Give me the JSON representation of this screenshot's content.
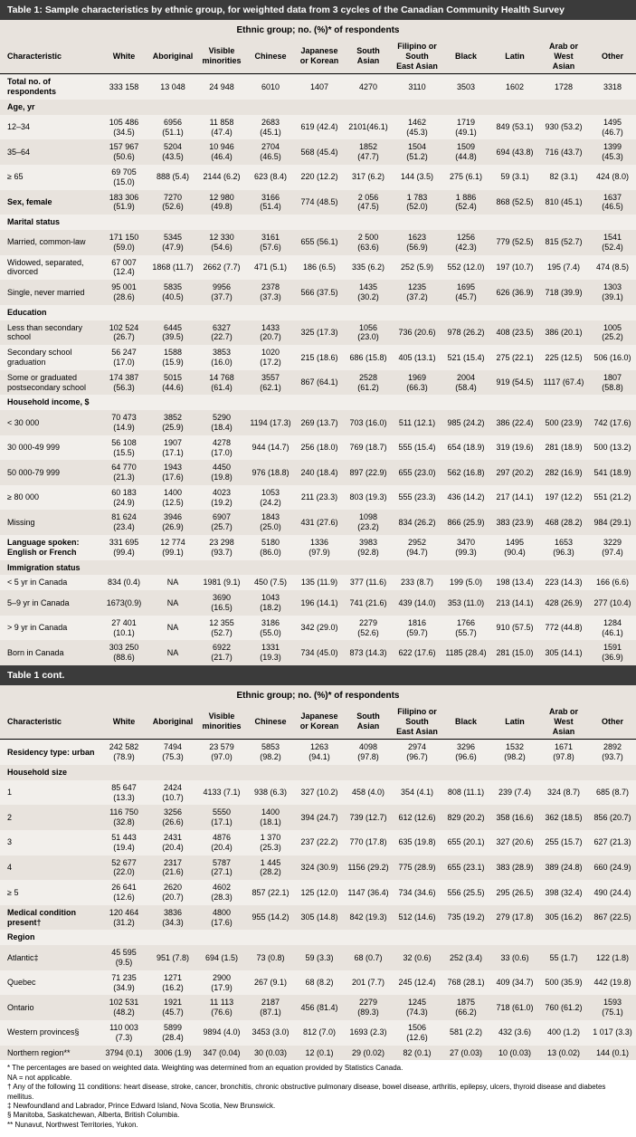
{
  "title1": "Table 1: Sample characteristics by ethnic group, for weighted data from 3 cycles of the Canadian Community Health Survey",
  "title2": "Table 1 cont.",
  "group_header": "Ethnic group; no. (%)* of respondents",
  "cols": [
    "Characteristic",
    "White",
    "Aboriginal",
    "Visible minorities",
    "Chinese",
    "Japanese or Korean",
    "South Asian",
    "Filipino or South East Asian",
    "Black",
    "Latin",
    "Arab or West Asian",
    "Other"
  ],
  "part1": [
    {
      "s": "Total no. of respondents",
      "r": [
        [
          "",
          "333 158",
          "13 048",
          "24 948",
          "6010",
          "1407",
          "4270",
          "3110",
          "3503",
          "1602",
          "1728",
          "3318"
        ]
      ]
    },
    {
      "s": "Age, yr",
      "r": [
        [
          "12–34",
          "105 486 (34.5)",
          "6956 (51.1)",
          "11 858 (47.4)",
          "2683 (45.1)",
          "619 (42.4)",
          "2101(46.1)",
          "1462 (45.3)",
          "1719 (49.1)",
          "849 (53.1)",
          "930 (53.2)",
          "1495 (46.7)"
        ],
        [
          "35–64",
          "157 967 (50.6)",
          "5204 (43.5)",
          "10 946 (46.4)",
          "2704 (46.5)",
          "568 (45.4)",
          "1852 (47.7)",
          "1504 (51.2)",
          "1509 (44.8)",
          "694 (43.8)",
          "716 (43.7)",
          "1399 (45.3)"
        ],
        [
          "≥ 65",
          "69 705 (15.0)",
          "888 (5.4)",
          "2144 (6.2)",
          "623 (8.4)",
          "220 (12.2)",
          "317 (6.2)",
          "144 (3.5)",
          "275 (6.1)",
          "59 (3.1)",
          "82 (3.1)",
          "424 (8.0)"
        ]
      ]
    },
    {
      "s": "Sex, female",
      "r": [
        [
          "",
          "183 306 (51.9)",
          "7270 (52.6)",
          "12 980 (49.8)",
          "3166 (51.4)",
          "774 (48.5)",
          "2 056 (47.5)",
          "1 783 (52.0)",
          "1 886 (52.4)",
          "868 (52.5)",
          "810 (45.1)",
          "1637 (46.5)"
        ]
      ]
    },
    {
      "s": "Marital status",
      "r": [
        [
          "Married, common-law",
          "171 150 (59.0)",
          "5345 (47.9)",
          "12 330 (54.6)",
          "3161 (57.6)",
          "655 (56.1)",
          "2 500 (63.6)",
          "1623 (56.9)",
          "1256 (42.3)",
          "779 (52.5)",
          "815 (52.7)",
          "1541 (52.4)"
        ],
        [
          "Widowed, separated, divorced",
          "67 007 (12.4)",
          "1868 (11.7)",
          "2662 (7.7)",
          "471 (5.1)",
          "186 (6.5)",
          "335 (6.2)",
          "252 (5.9)",
          "552 (12.0)",
          "197 (10.7)",
          "195 (7.4)",
          "474 (8.5)"
        ],
        [
          "Single, never married",
          "95 001 (28.6)",
          "5835 (40.5)",
          "9956 (37.7)",
          "2378 (37.3)",
          "566 (37.5)",
          "1435 (30.2)",
          "1235 (37.2)",
          "1695 (45.7)",
          "626 (36.9)",
          "718 (39.9)",
          "1303 (39.1)"
        ]
      ]
    },
    {
      "s": "Education",
      "r": [
        [
          "Less than secondary school",
          "102 524 (26.7)",
          "6445 (39.5)",
          "6327 (22.7)",
          "1433 (20.7)",
          "325 (17.3)",
          "1056 (23.0)",
          "736 (20.6)",
          "978 (26.2)",
          "408 (23.5)",
          "386 (20.1)",
          "1005 (25.2)"
        ],
        [
          "Secondary school graduation",
          "56 247 (17.0)",
          "1588 (15.9)",
          "3853 (16.0)",
          "1020 (17.2)",
          "215 (18.6)",
          "686 (15.8)",
          "405 (13.1)",
          "521 (15.4)",
          "275 (22.1)",
          "225 (12.5)",
          "506 (16.0)"
        ],
        [
          "Some or graduated postsecondary school",
          "174 387 (56.3)",
          "5015 (44.6)",
          "14 768 (61.4)",
          "3557 (62.1)",
          "867 (64.1)",
          "2528 (61.2)",
          "1969 (66.3)",
          "2004 (58.4)",
          "919 (54.5)",
          "1117 (67.4)",
          "1807 (58.8)"
        ]
      ]
    },
    {
      "s": "Household income, $",
      "r": [
        [
          "< 30 000",
          "70 473 (14.9)",
          "3852 (25.9)",
          "5290 (18.4)",
          "1194 (17.3)",
          "269 (13.7)",
          "703 (16.0)",
          "511 (12.1)",
          "985 (24.2)",
          "386 (22.4)",
          "500 (23.9)",
          "742 (17.6)"
        ],
        [
          "30 000-49 999",
          "56 108 (15.5)",
          "1907 (17.1)",
          "4278 (17.0)",
          "944 (14.7)",
          "256 (18.0)",
          "769 (18.7)",
          "555 (15.4)",
          "654 (18.9)",
          "319 (19.6)",
          "281 (18.9)",
          "500 (13.2)"
        ],
        [
          "50 000-79 999",
          "64 770 (21.3)",
          "1943 (17.6)",
          "4450 (19.8)",
          "976 (18.8)",
          "240 (18.4)",
          "897 (22.9)",
          "655 (23.0)",
          "562 (16.8)",
          "297 (20.2)",
          "282 (16.9)",
          "541 (18.9)"
        ],
        [
          "≥ 80 000",
          "60 183 (24.9)",
          "1400 (12.5)",
          "4023 (19.2)",
          "1053 (24.2)",
          "211 (23.3)",
          "803 (19.3)",
          "555 (23.3)",
          "436 (14.2)",
          "217 (14.1)",
          "197 (12.2)",
          "551 (21.2)"
        ],
        [
          "Missing",
          "81 624 (23.4)",
          "3946 (26.9)",
          "6907 (25.7)",
          "1843 (25.0)",
          "431 (27.6)",
          "1098 (23.2)",
          "834 (26.2)",
          "866 (25.9)",
          "383 (23.9)",
          "468 (28.2)",
          "984 (29.1)"
        ]
      ]
    },
    {
      "s": "Language spoken: English or French",
      "r": [
        [
          "",
          "331 695 (99.4)",
          "12 774 (99.1)",
          "23 298 (93.7)",
          "5180 (86.0)",
          "1336 (97.9)",
          "3983 (92.8)",
          "2952 (94.7)",
          "3470 (99.3)",
          "1495 (90.4)",
          "1653 (96.3)",
          "3229 (97.4)"
        ]
      ]
    },
    {
      "s": "Immigration status",
      "r": [
        [
          "< 5 yr in Canada",
          "834 (0.4)",
          "NA",
          "1981 (9.1)",
          "450 (7.5)",
          "135 (11.9)",
          "377 (11.6)",
          "233 (8.7)",
          "199 (5.0)",
          "198 (13.4)",
          "223 (14.3)",
          "166 (6.6)"
        ],
        [
          "5–9 yr in Canada",
          "1673(0.9)",
          "NA",
          "3690 (16.5)",
          "1043 (18.2)",
          "196 (14.1)",
          "741 (21.6)",
          "439 (14.0)",
          "353 (11.0)",
          "213 (14.1)",
          "428 (26.9)",
          "277 (10.4)"
        ],
        [
          "> 9 yr in Canada",
          "27 401 (10.1)",
          "NA",
          "12 355 (52.7)",
          "3186 (55.0)",
          "342 (29.0)",
          "2279 (52.6)",
          "1816 (59.7)",
          "1766 (55.7)",
          "910 (57.5)",
          "772 (44.8)",
          "1284 (46.1)"
        ],
        [
          "Born in Canada",
          "303 250 (88.6)",
          "NA",
          "6922 (21.7)",
          "1331 (19.3)",
          "734 (45.0)",
          "873 (14.3)",
          "622 (17.6)",
          "1185 (28.4)",
          "281 (15.0)",
          "305 (14.1)",
          "1591 (36.9)"
        ]
      ]
    }
  ],
  "part2": [
    {
      "s": "Residency type: urban",
      "r": [
        [
          "",
          "242 582 (78.9)",
          "7494 (75.3)",
          "23 579 (97.0)",
          "5853 (98.2)",
          "1263 (94.1)",
          "4098 (97.8)",
          "2974 (96.7)",
          "3296 (96.6)",
          "1532 (98.2)",
          "1671 (97.8)",
          "2892 (93.7)"
        ]
      ]
    },
    {
      "s": "Household size",
      "r": [
        [
          "1",
          "85 647 (13.3)",
          "2424 (10.7)",
          "4133 (7.1)",
          "938 (6.3)",
          "327 (10.2)",
          "458 (4.0)",
          "354 (4.1)",
          "808 (11.1)",
          "239 (7.4)",
          "324 (8.7)",
          "685 (8.7)"
        ],
        [
          "2",
          "116 750 (32.8)",
          "3256 (26.6)",
          "5550 (17.1)",
          "1400 (18.1)",
          "394 (24.7)",
          "739 (12.7)",
          "612 (12.6)",
          "829 (20.2)",
          "358 (16.6)",
          "362 (18.5)",
          "856 (20.7)"
        ],
        [
          "3",
          "51 443 (19.4)",
          "2431 (20.4)",
          "4876 (20.4)",
          "1 370 (25.3)",
          "237 (22.2)",
          "770 (17.8)",
          "635 (19.8)",
          "655 (20.1)",
          "327 (20.6)",
          "255 (15.7)",
          "627 (21.3)"
        ],
        [
          "4",
          "52 677 (22.0)",
          "2317 (21.6)",
          "5787 (27.1)",
          "1 445 (28.2)",
          "324 (30.9)",
          "1156 (29.2)",
          "775 (28.9)",
          "655 (23.1)",
          "383 (28.9)",
          "389 (24.8)",
          "660 (24.9)"
        ],
        [
          "≥ 5",
          "26 641 (12.6)",
          "2620 (20.7)",
          "4602 (28.3)",
          "857 (22.1)",
          "125 (12.0)",
          "1147 (36.4)",
          "734 (34.6)",
          "556 (25.5)",
          "295 (26.5)",
          "398 (32.4)",
          "490 (24.4)"
        ]
      ]
    },
    {
      "s": "Medical condition present†",
      "r": [
        [
          "",
          "120 464 (31.2)",
          "3836 (34.3)",
          "4800 (17.6)",
          "955 (14.2)",
          "305 (14.8)",
          "842 (19.3)",
          "512 (14.6)",
          "735 (19.2)",
          "279 (17.8)",
          "305 (16.2)",
          "867 (22.5)"
        ]
      ]
    },
    {
      "s": "Region",
      "r": [
        [
          "Atlantic‡",
          "45 595 (9.5)",
          "951 (7.8)",
          "694 (1.5)",
          "73 (0.8)",
          "59 (3.3)",
          "68 (0.7)",
          "32 (0.6)",
          "252 (3.4)",
          "33 (0.6)",
          "55 (1.7)",
          "122 (1.8)"
        ],
        [
          "Quebec",
          "71 235 (34.9)",
          "1271 (16.2)",
          "2900 (17.9)",
          "267 (9.1)",
          "68 (8.2)",
          "201 (7.7)",
          "245 (12.4)",
          "768 (28.1)",
          "409 (34.7)",
          "500 (35.9)",
          "442 (19.8)"
        ],
        [
          "Ontario",
          "102 531 (48.2)",
          "1921 (45.7)",
          "11 113 (76.6)",
          "2187 (87.1)",
          "456 (81.4)",
          "2279 (89.3)",
          "1245 (74.3)",
          "1875 (66.2)",
          "718 (61.0)",
          "760 (61.2)",
          "1593 (75.1)"
        ],
        [
          "Western provinces§",
          "110 003 (7.3)",
          "5899 (28.4)",
          "9894 (4.0)",
          "3453 (3.0)",
          "812 (7.0)",
          "1693 (2.3)",
          "1506 (12.6)",
          "581 (2.2)",
          "432 (3.6)",
          "400 (1.2)",
          "1 017 (3.3)"
        ],
        [
          "Northern region**",
          "3794 (0.1)",
          "3006 (1.9)",
          "347 (0.04)",
          "30 (0.03)",
          "12 (0.1)",
          "29 (0.02)",
          "82 (0.1)",
          "27 (0.03)",
          "10 (0.03)",
          "13 (0.02)",
          "144 (0.1)"
        ]
      ]
    }
  ],
  "footnotes": [
    "* The percentages are based on weighted data. Weighting was determined from an equation provided by Statistics Canada.",
    "  NA = not applicable.",
    "† Any of the following 11 conditions: heart disease, stroke, cancer, bronchitis, chronic obstructive pulmonary disease, bowel disease, arthritis, epilepsy, ulcers, thyroid disease and diabetes mellitus.",
    "‡ Newfoundland and Labrador, Prince Edward Island, Nova Scotia, New Brunswick.",
    "§ Manitoba, Saskatchewan, Alberta, British Columbia.",
    "** Nunavut, Northwest Territories, Yukon."
  ]
}
